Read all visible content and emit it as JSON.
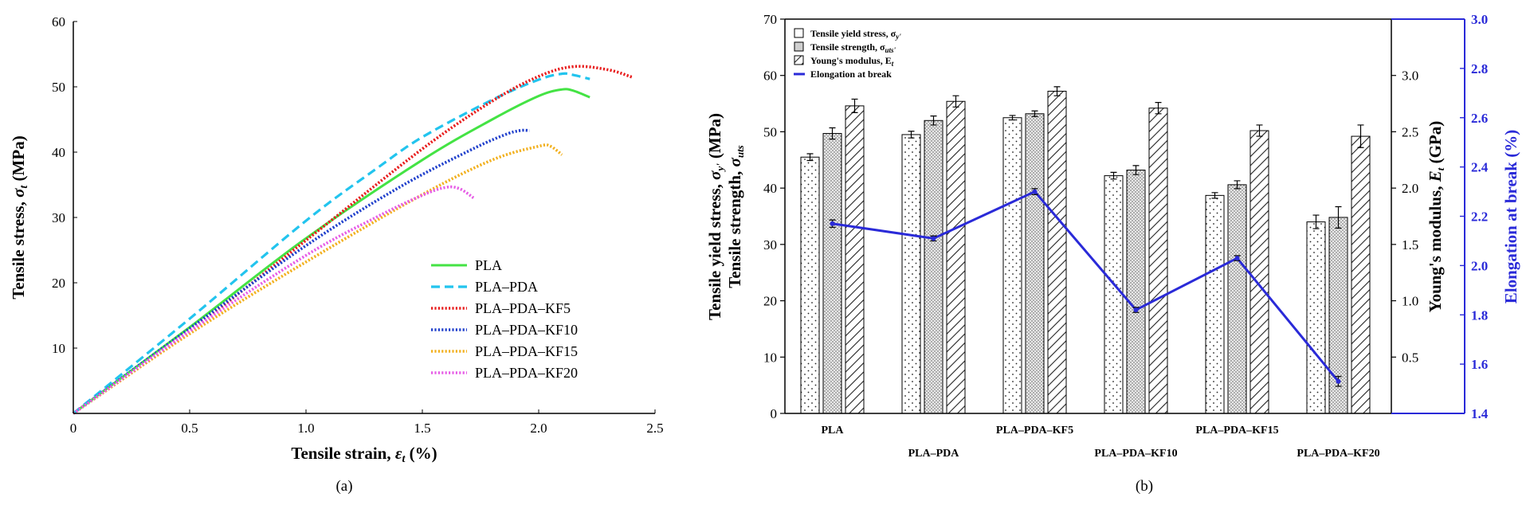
{
  "chart_data": [
    {
      "type": "line",
      "panel_label": "(a)",
      "xlabel_main": "Tensile strain, ",
      "xlabel_sym": "ε",
      "xlabel_sub": "t",
      "xlabel_unit": " (%)",
      "ylabel_main": "Tensile stress, ",
      "ylabel_sym": "σ",
      "ylabel_sub": "t",
      "ylabel_unit": " (MPa)",
      "xlim": [
        0,
        2.5
      ],
      "ylim": [
        0,
        60
      ],
      "xticks": [
        "0",
        "0.5",
        "1.0",
        "1.5",
        "2.0",
        "2.5"
      ],
      "yticks": [
        "10",
        "20",
        "30",
        "40",
        "50",
        "60"
      ],
      "grid": false,
      "legend_position": "bottom-right",
      "series": [
        {
          "name": "PLA",
          "color": "#44e344",
          "style": "solid",
          "points": [
            [
              0,
              0
            ],
            [
              0.5,
              13.2
            ],
            [
              1.0,
              26.8
            ],
            [
              1.5,
              38.8
            ],
            [
              1.8,
              45.0
            ],
            [
              2.0,
              48.6
            ],
            [
              2.1,
              49.6
            ],
            [
              2.15,
              49.4
            ],
            [
              2.22,
              48.4
            ]
          ]
        },
        {
          "name": "PLA–PDA",
          "color": "#22c4ee",
          "style": "dashed",
          "points": [
            [
              0,
              0
            ],
            [
              0.5,
              14.5
            ],
            [
              1.0,
              29.5
            ],
            [
              1.3,
              37.4
            ],
            [
              1.5,
              42.3
            ],
            [
              1.8,
              48.0
            ],
            [
              2.0,
              51.1
            ],
            [
              2.1,
              52.0
            ],
            [
              2.15,
              51.8
            ],
            [
              2.22,
              51.2
            ]
          ]
        },
        {
          "name": "PLA–PDA–KF5",
          "color": "#e81d1d",
          "style": "dotted",
          "points": [
            [
              0,
              0
            ],
            [
              0.5,
              12.6
            ],
            [
              1.0,
              26.5
            ],
            [
              1.5,
              40.5
            ],
            [
              1.8,
              47.8
            ],
            [
              2.0,
              51.6
            ],
            [
              2.15,
              53.1
            ],
            [
              2.3,
              52.6
            ],
            [
              2.4,
              51.5
            ]
          ]
        },
        {
          "name": "PLA–PDA–KF10",
          "color": "#1f3fcc",
          "style": "dotted",
          "points": [
            [
              0,
              0
            ],
            [
              0.5,
              13.0
            ],
            [
              1.0,
              25.7
            ],
            [
              1.4,
              34.6
            ],
            [
              1.7,
              40.2
            ],
            [
              1.85,
              42.6
            ],
            [
              1.92,
              43.3
            ],
            [
              1.96,
              43.3
            ]
          ]
        },
        {
          "name": "PLA–PDA–KF15",
          "color": "#f2b01e",
          "style": "dotted",
          "points": [
            [
              0,
              0
            ],
            [
              0.5,
              12.2
            ],
            [
              1.0,
              23.2
            ],
            [
              1.5,
              33.5
            ],
            [
              1.8,
              38.8
            ],
            [
              2.0,
              40.9
            ],
            [
              2.05,
              40.9
            ],
            [
              2.1,
              39.6
            ]
          ]
        },
        {
          "name": "PLA–PDA–KF20",
          "color": "#e65ce6",
          "style": "dotted",
          "points": [
            [
              0,
              0
            ],
            [
              0.5,
              12.6
            ],
            [
              1.0,
              24.2
            ],
            [
              1.3,
              30.0
            ],
            [
              1.5,
              33.4
            ],
            [
              1.6,
              34.6
            ],
            [
              1.66,
              34.4
            ],
            [
              1.72,
              33.0
            ]
          ]
        }
      ]
    },
    {
      "type": "bar",
      "panel_label": "(b)",
      "ylabel_left_line1": "Tensile yield stress, ",
      "ylabel_left_sym1": "σ",
      "ylabel_left_sub1": "y'",
      "ylabel_left_line2": "Tensile strength, ",
      "ylabel_left_sym2": "σ",
      "ylabel_left_sub2": "uts",
      "ylabel_left_unit": "(MPa)",
      "ylabel_right_main": "Young's modulus, ",
      "ylabel_right_sym": "E",
      "ylabel_right_sub": "t",
      "ylabel_right_unit": " (GPa)",
      "ylabel_right2": "Elongation at break (%)",
      "ylim_left": [
        0,
        70
      ],
      "ylim_modulus": [
        0,
        3.5
      ],
      "ylim_elongation": [
        1.4,
        3.0
      ],
      "yticks_left": [
        "0",
        "10",
        "20",
        "30",
        "40",
        "50",
        "60",
        "70"
      ],
      "yticks_modulus": [
        "0.5",
        "1.0",
        "1.5",
        "2.0",
        "2.5",
        "3.0"
      ],
      "yticks_elongation": [
        "1.4",
        "1.6",
        "1.8",
        "2.0",
        "2.2",
        "2.4",
        "2.6",
        "2.8",
        "3.0"
      ],
      "categories": [
        "PLA",
        "PLA–PDA",
        "PLA–PDA–KF5",
        "PLA–PDA–KF10",
        "PLA–PDA–KF15",
        "PLA–PDA–KF20"
      ],
      "legend_position": "top-left",
      "legend": [
        {
          "text": "Tensile yield stress, σ",
          "sub": "y'"
        },
        {
          "text": "Tensile strength, σ",
          "sub": "uts'"
        },
        {
          "text": "Young's modulus, E",
          "sub": "t"
        },
        {
          "text": "Elongation at break",
          "sub": ""
        }
      ],
      "series": [
        {
          "name": "Tensile yield stress",
          "axis": "left",
          "pattern": "dots",
          "values": [
            45.5,
            49.5,
            52.5,
            42.2,
            38.7,
            34.0
          ],
          "errors": [
            0.6,
            0.6,
            0.4,
            0.6,
            0.5,
            1.2
          ]
        },
        {
          "name": "Tensile strength",
          "axis": "left",
          "pattern": "fine-dots",
          "values": [
            49.7,
            52.0,
            53.2,
            43.2,
            40.6,
            34.8
          ],
          "errors": [
            1.0,
            0.8,
            0.5,
            0.8,
            0.7,
            1.9
          ]
        },
        {
          "name": "Young's modulus",
          "axis": "modulus",
          "pattern": "hatch",
          "values": [
            2.73,
            2.77,
            2.86,
            2.71,
            2.51,
            2.46
          ],
          "errors": [
            0.06,
            0.05,
            0.04,
            0.05,
            0.05,
            0.1
          ]
        },
        {
          "name": "Elongation at break",
          "axis": "elongation",
          "color": "#2a2ad8",
          "values": [
            2.17,
            2.11,
            2.3,
            1.82,
            2.03,
            1.53
          ],
          "errors": [
            0.015,
            0.01,
            0.012,
            0.01,
            0.01,
            0.02
          ]
        }
      ]
    }
  ]
}
